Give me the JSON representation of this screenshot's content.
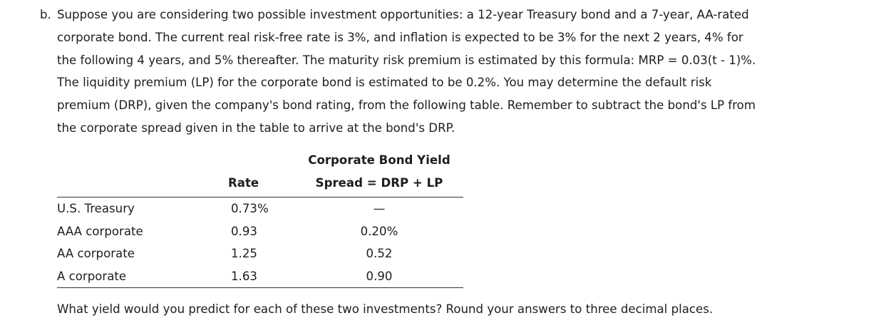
{
  "question": {
    "label": "b.",
    "lines": [
      "Suppose you are considering two possible investment opportunities: a 12-year Treasury bond and a 7-year, AA-rated",
      "corporate bond. The current real risk-free rate is 3%, and inflation is expected to be 3% for the next 2 years, 4% for",
      "the following 4 years, and 5% thereafter. The maturity risk premium is estimated by this formula: MRP = 0.03(t - 1)%.",
      "The liquidity premium (LP) for the corporate bond is estimated to be 0.2%. You may determine the default risk",
      "premium (DRP), given the company's bond rating, from the following table. Remember to subtract the bond's LP from",
      "the corporate spread given in the table to arrive at the bond's DRP."
    ]
  },
  "table": {
    "header_rate": "Rate",
    "header_spread_line1": "Corporate Bond Yield",
    "header_spread_line2": "Spread = DRP + LP",
    "rows": [
      {
        "name": "U.S. Treasury",
        "rate": "0.73%",
        "spread": "—"
      },
      {
        "name": "AAA corporate",
        "rate": "0.93",
        "spread": "0.20%"
      },
      {
        "name": "AA corporate",
        "rate": "1.25",
        "spread": "0.52"
      },
      {
        "name": "A corporate",
        "rate": "1.63",
        "spread": "0.90"
      }
    ]
  },
  "footer": "What yield would you predict for each of these two investments? Round your answers to three decimal places."
}
